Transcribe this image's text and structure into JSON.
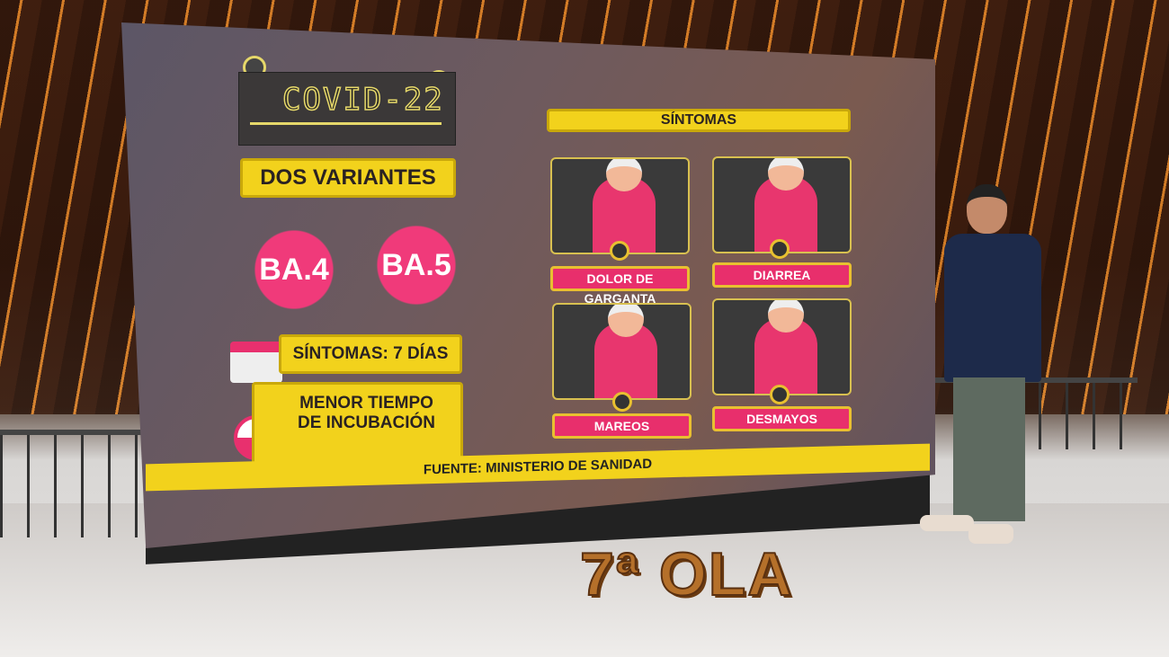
{
  "screen": {
    "title": "COVID-22",
    "variants_heading": "DOS VARIANTES",
    "variants": [
      "BA.4",
      "BA.5"
    ],
    "symptoms_duration": "SÍNTOMAS: 7 DÍAS",
    "incubation": "MENOR TIEMPO DE INCUBACIÓN",
    "symptoms_heading": "SÍNTOMAS",
    "symptoms": [
      {
        "label": "DOLOR DE GARGANTA"
      },
      {
        "label": "DIARREA"
      },
      {
        "label": "MAREOS"
      },
      {
        "label": "DESMAYOS"
      }
    ],
    "source": "FUENTE: MINISTERIO DE SANIDAD"
  },
  "overlay": {
    "caption": "7ª OLA"
  },
  "colors": {
    "yellow": "#f2d21c",
    "pink": "#e8306e",
    "orange": "#b5702a"
  }
}
